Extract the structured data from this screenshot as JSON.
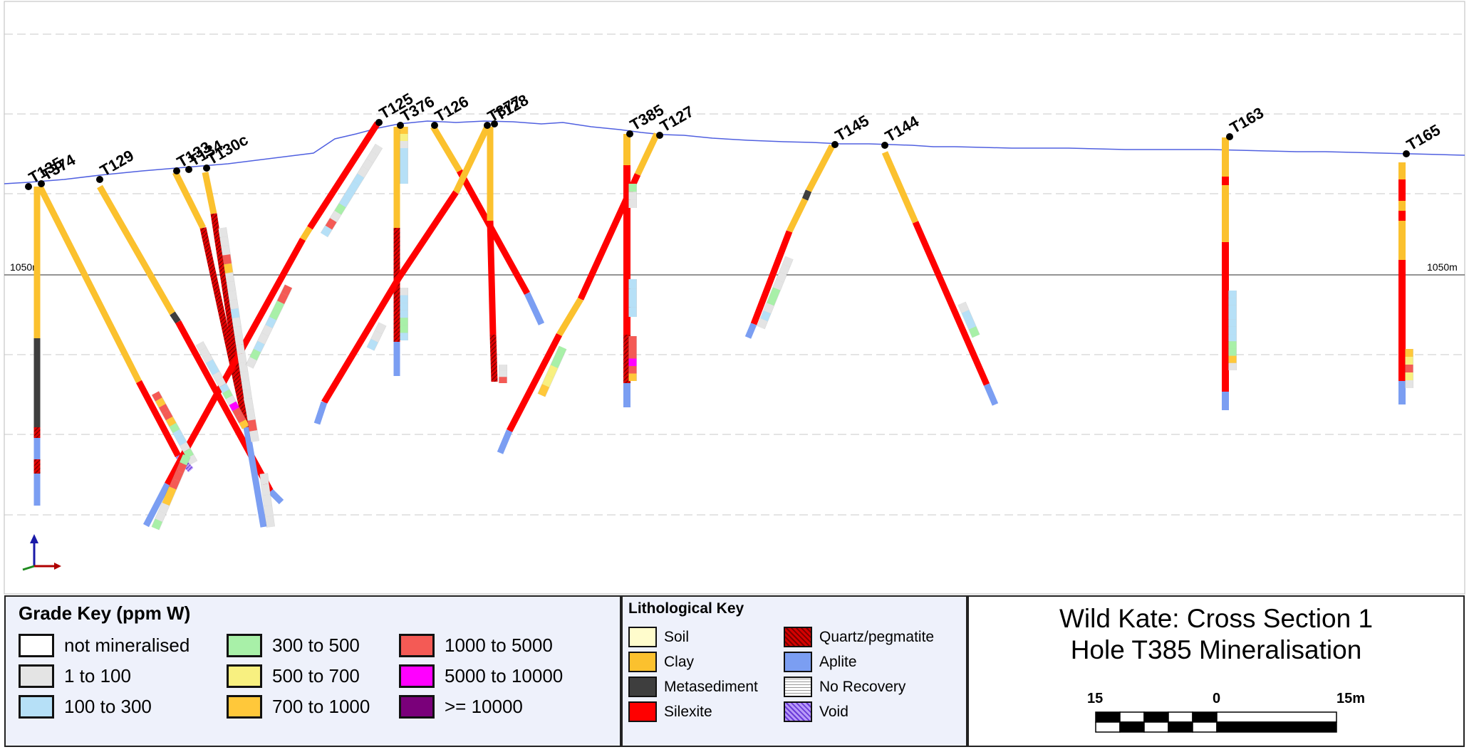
{
  "section": {
    "elevation_label": "1050m",
    "holes": [
      {
        "label": "T135"
      },
      {
        "label": "T374"
      },
      {
        "label": "T129"
      },
      {
        "label": "T133"
      },
      {
        "label": "T134"
      },
      {
        "label": "T130c"
      },
      {
        "label": "T125"
      },
      {
        "label": "T376"
      },
      {
        "label": "T126"
      },
      {
        "label": "T377"
      },
      {
        "label": "T128"
      },
      {
        "label": "T385"
      },
      {
        "label": "T127"
      },
      {
        "label": "T145"
      },
      {
        "label": "T144"
      },
      {
        "label": "T163"
      },
      {
        "label": "T165"
      }
    ]
  },
  "grade_key": {
    "title": "Grade Key (ppm W)",
    "items": [
      {
        "label": "not mineralised",
        "color": "#ffffff"
      },
      {
        "label": "1 to 100",
        "color": "#e4e4e4"
      },
      {
        "label": "100 to 300",
        "color": "#b6e0f7"
      },
      {
        "label": "300 to 500",
        "color": "#a8f0a8"
      },
      {
        "label": "500 to 700",
        "color": "#f8f080"
      },
      {
        "label": "700 to 1000",
        "color": "#ffc83a"
      },
      {
        "label": "1000 to 5000",
        "color": "#f45a55"
      },
      {
        "label": "5000 to 10000",
        "color": "#ff00ff"
      },
      {
        "label": ">= 10000",
        "color": "#7a007a"
      }
    ]
  },
  "lithological_key": {
    "title": "Lithological Key",
    "items": [
      {
        "label": "Soil",
        "color": "#fffccc"
      },
      {
        "label": "Clay",
        "color": "#fbc12e"
      },
      {
        "label": "Metasediment",
        "color": "#3e3e3e"
      },
      {
        "label": "Silexite",
        "color": "#ff0000"
      },
      {
        "label": "Quartz/pegmatite",
        "color": "#d40000"
      },
      {
        "label": "Aplite",
        "color": "#7b9ef2"
      },
      {
        "label": "No Recovery",
        "color": "#e8e8e8"
      },
      {
        "label": "Void",
        "color": "#9a6cf0"
      }
    ]
  },
  "title_box": {
    "line1": "Wild Kate: Cross Section 1",
    "line2": "Hole T385 Mineralisation"
  },
  "scale_bar": {
    "left_label": "15",
    "middle_label": "0",
    "right_label": "15m"
  }
}
